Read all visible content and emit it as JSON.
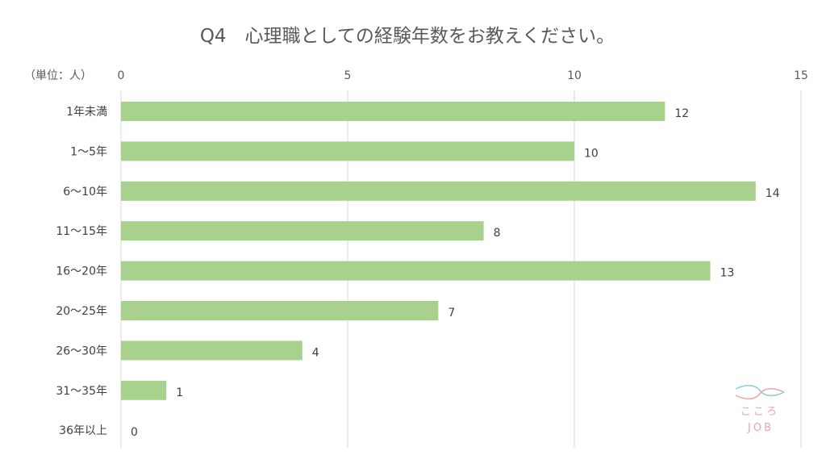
{
  "chart_data": {
    "type": "bar",
    "orientation": "horizontal",
    "title": "Q4　心理職としての経験年数をお教えください。",
    "unit_label": "（単位：人）",
    "categories": [
      "1年未満",
      "1～5年",
      "6～10年",
      "11～15年",
      "16～20年",
      "20～25年",
      "26～30年",
      "31～35年",
      "36年以上"
    ],
    "values": [
      12,
      10,
      14,
      8,
      13,
      7,
      4,
      1,
      0
    ],
    "xlim": [
      0,
      15
    ],
    "xticks": [
      0,
      5,
      10,
      15
    ],
    "x_axis_position": "top",
    "grid": true,
    "bar_color": "#a9d18e"
  },
  "logo": {
    "line1": "こころ",
    "line2": "JOB"
  }
}
